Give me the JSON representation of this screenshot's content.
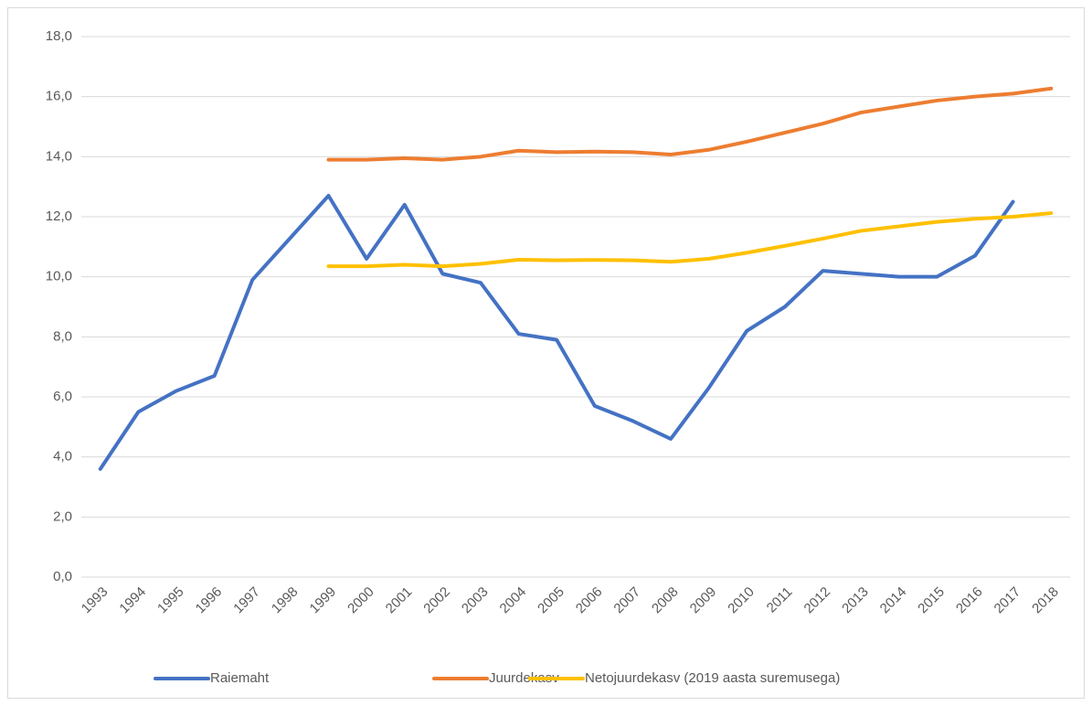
{
  "chart_data": {
    "type": "line",
    "categories": [
      "1993",
      "1994",
      "1995",
      "1996",
      "1997",
      "1998",
      "1999",
      "2000",
      "2001",
      "2002",
      "2003",
      "2004",
      "2005",
      "2006",
      "2007",
      "2008",
      "2009",
      "2010",
      "2011",
      "2012",
      "2013",
      "2014",
      "2015",
      "2016",
      "2017",
      "2018"
    ],
    "series": [
      {
        "name": "Raiemaht",
        "color": "#4472c4",
        "values": [
          3.6,
          5.5,
          6.2,
          6.7,
          9.9,
          11.3,
          12.7,
          10.6,
          12.4,
          10.1,
          9.8,
          8.1,
          7.9,
          5.7,
          5.2,
          4.6,
          6.3,
          8.2,
          9.0,
          10.2,
          10.1,
          10.0,
          10.0,
          10.7,
          12.5,
          null
        ]
      },
      {
        "name": "Juurdekasv",
        "color": "#ed7d31",
        "values": [
          null,
          null,
          null,
          null,
          null,
          null,
          13.9,
          13.9,
          13.95,
          13.9,
          14.0,
          14.2,
          14.15,
          14.17,
          14.15,
          14.07,
          14.23,
          14.5,
          14.8,
          15.1,
          15.47,
          15.67,
          15.87,
          16.0,
          16.1,
          16.27
        ]
      },
      {
        "name": "Netojuurdekasv (2019 aasta suremusega)",
        "color": "#ffc000",
        "values": [
          null,
          null,
          null,
          null,
          null,
          null,
          10.35,
          10.35,
          10.4,
          10.35,
          10.43,
          10.57,
          10.55,
          10.56,
          10.55,
          10.5,
          10.6,
          10.8,
          11.03,
          11.27,
          11.53,
          11.68,
          11.83,
          11.93,
          12.0,
          12.12
        ]
      }
    ],
    "ylim": [
      0,
      18
    ],
    "yticks": [
      {
        "value": 0,
        "label": "0,0"
      },
      {
        "value": 2,
        "label": "2,0"
      },
      {
        "value": 4,
        "label": "4,0"
      },
      {
        "value": 6,
        "label": "6,0"
      },
      {
        "value": 8,
        "label": "8,0"
      },
      {
        "value": 10,
        "label": "10,0"
      },
      {
        "value": 12,
        "label": "12,0"
      },
      {
        "value": 14,
        "label": "14,0"
      },
      {
        "value": 16,
        "label": "16,0"
      },
      {
        "value": 18,
        "label": "18,0"
      }
    ],
    "grid": true,
    "legend": "bottom"
  }
}
